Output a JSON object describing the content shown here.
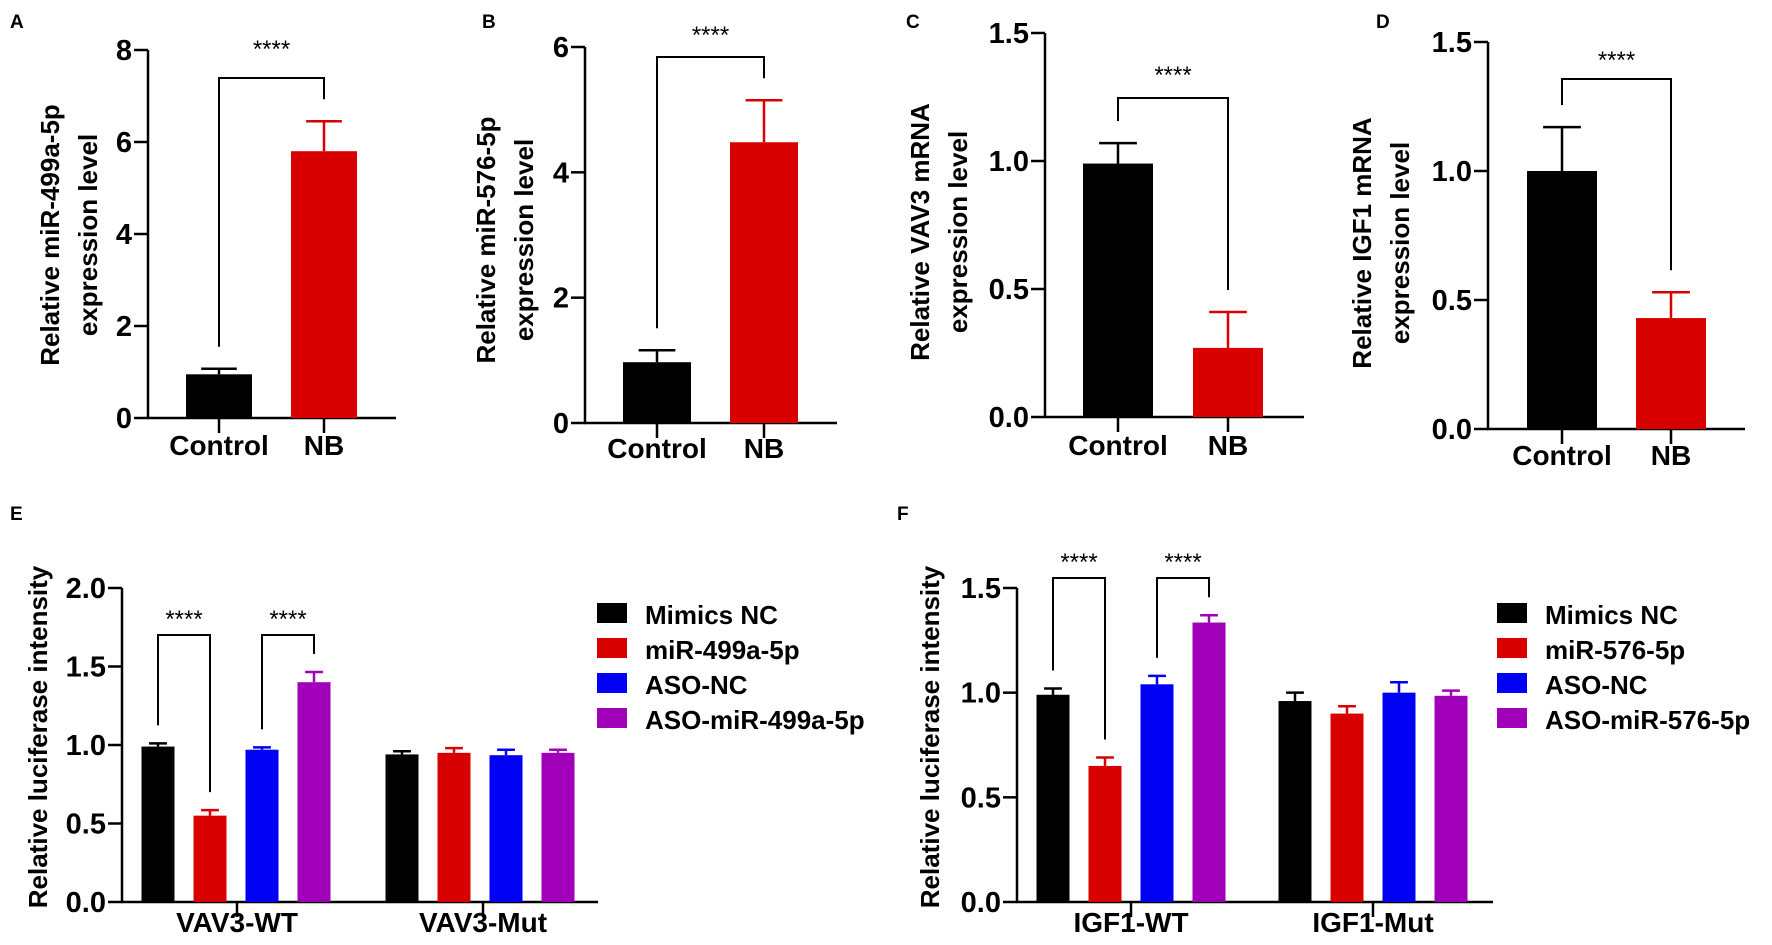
{
  "colors": {
    "black": "#000000",
    "red": "#d90000",
    "blue": "#0000f5",
    "purple": "#a000b8"
  },
  "chart_data": [
    {
      "panel": "A",
      "type": "bar",
      "ylabel": [
        "Relative miR-499a-5p",
        "expression level"
      ],
      "categories": [
        "Control",
        "NB"
      ],
      "values": [
        0.95,
        5.8
      ],
      "errors_upper": [
        1.07,
        6.45
      ],
      "bar_colors": [
        "black",
        "red"
      ],
      "ylim": [
        0,
        8
      ],
      "yticks": [
        "0",
        "2",
        "4",
        "6",
        "8"
      ],
      "ytick_values": [
        0,
        2,
        4,
        6,
        8
      ],
      "significance": [
        {
          "pair": [
            0,
            1
          ],
          "label": "****"
        }
      ]
    },
    {
      "panel": "B",
      "type": "bar",
      "ylabel": [
        "Relative miR-576-5p",
        "expression level"
      ],
      "categories": [
        "Control",
        "NB"
      ],
      "values": [
        0.97,
        4.48
      ],
      "errors_upper": [
        1.16,
        5.15
      ],
      "bar_colors": [
        "black",
        "red"
      ],
      "ylim": [
        0,
        6
      ],
      "yticks": [
        "0",
        "2",
        "4",
        "6"
      ],
      "ytick_values": [
        0,
        2,
        4,
        6
      ],
      "significance": [
        {
          "pair": [
            0,
            1
          ],
          "label": "****"
        }
      ]
    },
    {
      "panel": "C",
      "type": "bar",
      "ylabel": [
        "Relative VAV3 mRNA",
        "expression level"
      ],
      "categories": [
        "Control",
        "NB"
      ],
      "values": [
        0.99,
        0.27
      ],
      "errors_upper": [
        1.07,
        0.41
      ],
      "bar_colors": [
        "black",
        "red"
      ],
      "ylim": [
        0,
        1.5
      ],
      "yticks": [
        "0.0",
        "0.5",
        "1.0",
        "1.5"
      ],
      "ytick_values": [
        0,
        0.5,
        1,
        1.5
      ],
      "significance": [
        {
          "pair": [
            0,
            1
          ],
          "label": "****"
        }
      ]
    },
    {
      "panel": "D",
      "type": "bar",
      "ylabel": [
        "Relative IGF1 mRNA",
        "expression level"
      ],
      "categories": [
        "Control",
        "NB"
      ],
      "values": [
        1.0,
        0.43
      ],
      "errors_upper": [
        1.17,
        0.53
      ],
      "bar_colors": [
        "black",
        "red"
      ],
      "ylim": [
        0,
        1.5
      ],
      "yticks": [
        "0.0",
        "0.5",
        "1.0",
        "1.5"
      ],
      "ytick_values": [
        0,
        0.5,
        1,
        1.5
      ],
      "significance": [
        {
          "pair": [
            0,
            1
          ],
          "label": "****"
        }
      ]
    },
    {
      "panel": "E",
      "type": "bar",
      "ylabel": [
        "Relative luciferase intensity"
      ],
      "categories": [
        "VAV3-WT",
        "VAV3-Mut"
      ],
      "series": [
        {
          "name": "Mimics NC",
          "color": "black",
          "values": [
            0.99,
            0.94
          ],
          "errors_upper": [
            1.01,
            0.96
          ]
        },
        {
          "name": "miR-499a-5p",
          "color": "red",
          "values": [
            0.55,
            0.95
          ],
          "errors_upper": [
            0.585,
            0.98
          ]
        },
        {
          "name": "ASO-NC",
          "color": "blue",
          "values": [
            0.97,
            0.935
          ],
          "errors_upper": [
            0.985,
            0.97
          ]
        },
        {
          "name": "ASO-miR-499a-5p",
          "color": "purple",
          "values": [
            1.4,
            0.95
          ],
          "errors_upper": [
            1.465,
            0.97
          ]
        }
      ],
      "ylim": [
        0,
        2.0
      ],
      "yticks": [
        "0.0",
        "0.5",
        "1.0",
        "1.5",
        "2.0"
      ],
      "ytick_values": [
        0,
        0.5,
        1,
        1.5,
        2
      ],
      "legend": "right",
      "significance": [
        {
          "group": 0,
          "pair": [
            0,
            1
          ],
          "label": "****"
        },
        {
          "group": 0,
          "pair": [
            2,
            3
          ],
          "label": "****"
        }
      ]
    },
    {
      "panel": "F",
      "type": "bar",
      "ylabel": [
        "Relative luciferase intensity"
      ],
      "categories": [
        "IGF1-WT",
        "IGF1-Mut"
      ],
      "series": [
        {
          "name": "Mimics NC",
          "color": "black",
          "values": [
            0.99,
            0.96
          ],
          "errors_upper": [
            1.02,
            1.0
          ]
        },
        {
          "name": "miR-576-5p",
          "color": "red",
          "values": [
            0.65,
            0.9
          ],
          "errors_upper": [
            0.69,
            0.935
          ]
        },
        {
          "name": "ASO-NC",
          "color": "blue",
          "values": [
            1.04,
            1.0
          ],
          "errors_upper": [
            1.08,
            1.05
          ]
        },
        {
          "name": "ASO-miR-576-5p",
          "color": "purple",
          "values": [
            1.335,
            0.985
          ],
          "errors_upper": [
            1.37,
            1.01
          ]
        }
      ],
      "ylim": [
        0,
        1.5
      ],
      "yticks": [
        "0.0",
        "0.5",
        "1.0",
        "1.5"
      ],
      "ytick_values": [
        0,
        0.5,
        1,
        1.5
      ],
      "legend": "right",
      "significance": [
        {
          "group": 0,
          "pair": [
            0,
            1
          ],
          "label": "****"
        },
        {
          "group": 0,
          "pair": [
            2,
            3
          ],
          "label": "****"
        }
      ]
    }
  ]
}
